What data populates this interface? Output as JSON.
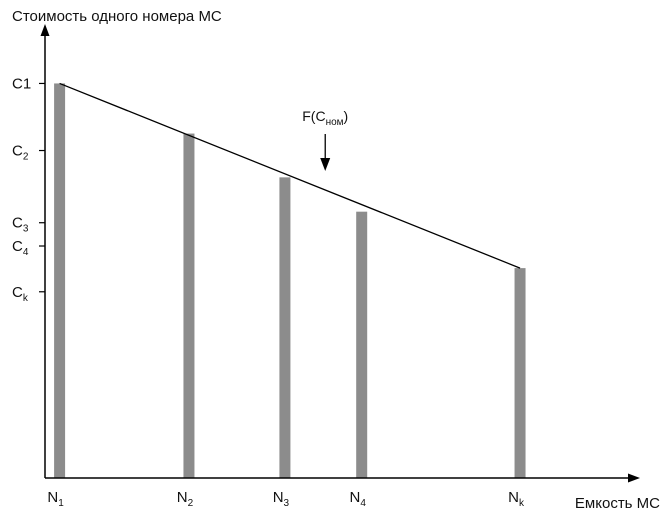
{
  "chart_data": {
    "type": "bar",
    "ylabel": "Стоимость одного номера МС",
    "xlabel": "Емкость МС",
    "categories": [
      {
        "main": "N",
        "sub": "1"
      },
      {
        "main": "N",
        "sub": "2"
      },
      {
        "main": "N",
        "sub": "3"
      },
      {
        "main": "N",
        "sub": "4"
      },
      {
        "main": "N",
        "sub": "k"
      }
    ],
    "x_positions": [
      0,
      1.4,
      2.4,
      3.2,
      4.85
    ],
    "x_range": [
      -0.1,
      6.1
    ],
    "values": [
      1.0,
      0.873,
      0.762,
      0.675,
      0.532
    ],
    "ylim": [
      0,
      1.1
    ],
    "y_ticks": [
      {
        "main": "C1",
        "sub": "",
        "value": 1.0
      },
      {
        "main": "C",
        "sub": "2",
        "value": 0.83
      },
      {
        "main": "C",
        "sub": "3",
        "value": 0.647
      },
      {
        "main": "C",
        "sub": "4",
        "value": 0.588
      },
      {
        "main": "C",
        "sub": "k",
        "value": 0.472
      }
    ],
    "trend_line": {
      "x": [
        0,
        4.85
      ],
      "y": [
        1.0,
        0.532
      ]
    },
    "annotation": {
      "prefix": "F(C",
      "sub": "ном",
      "suffix": ")",
      "arrow_to_x": 2.82
    },
    "colors": {
      "bar": "#8c8c8c",
      "axis": "#000000",
      "text": "#111111"
    }
  }
}
